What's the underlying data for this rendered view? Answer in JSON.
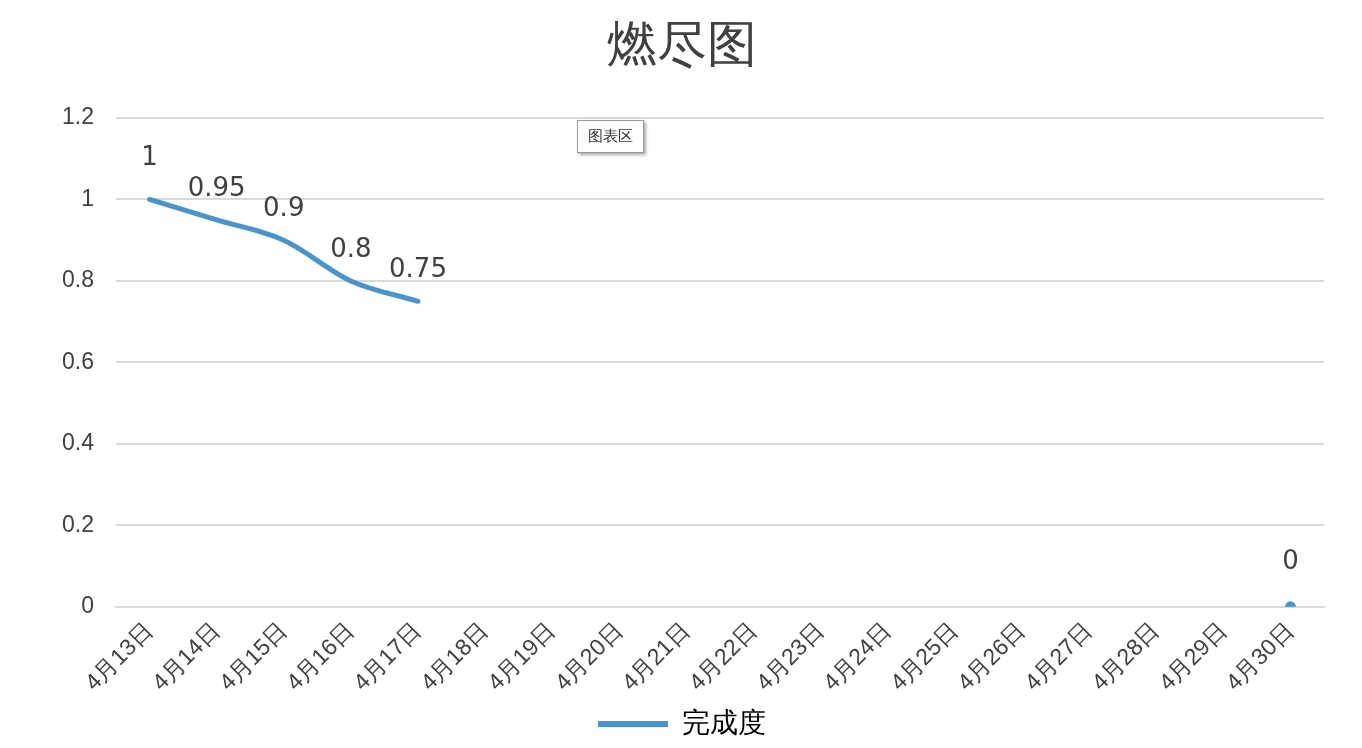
{
  "chart_data": {
    "type": "line",
    "title": "燃尽图",
    "categories": [
      "4月13日",
      "4月14日",
      "4月15日",
      "4月16日",
      "4月17日",
      "4月18日",
      "4月19日",
      "4月20日",
      "4月21日",
      "4月22日",
      "4月23日",
      "4月24日",
      "4月25日",
      "4月26日",
      "4月27日",
      "4月28日",
      "4月29日",
      "4月30日"
    ],
    "series": [
      {
        "name": "完成度",
        "color": "#4a94cc",
        "values": [
          1,
          0.95,
          0.9,
          0.8,
          0.75,
          null,
          null,
          null,
          null,
          null,
          null,
          null,
          null,
          null,
          null,
          null,
          null,
          0
        ]
      }
    ],
    "ylim": [
      0,
      1.2
    ],
    "yticks": [
      0,
      0.2,
      0.4,
      0.6,
      0.8,
      1,
      1.2
    ],
    "grid": "y",
    "legend": "bottom",
    "marker": "none",
    "line_style": "solid",
    "data_labels": true,
    "annotations": [
      "图表区"
    ]
  }
}
